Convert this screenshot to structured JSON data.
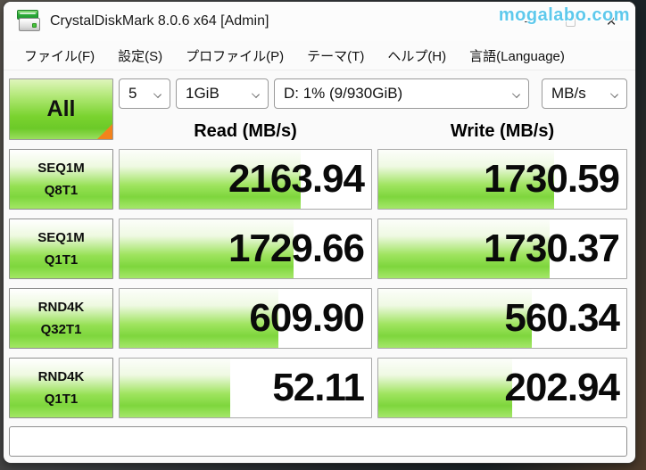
{
  "window": {
    "title": "CrystalDiskMark 8.0.6 x64 [Admin]",
    "watermark": "mogalabo.com",
    "controls": {
      "close": "×"
    }
  },
  "menu": {
    "items": [
      {
        "label": "ファイル(F)"
      },
      {
        "label": "設定(S)"
      },
      {
        "label": "プロファイル(P)"
      },
      {
        "label": "テーマ(T)"
      },
      {
        "label": "ヘルプ(H)"
      },
      {
        "label": "言語(Language)"
      }
    ]
  },
  "toolbar": {
    "all_button": "All",
    "test_count": "5",
    "test_size": "1GiB",
    "target_drive": "D: 1% (9/930GiB)",
    "unit": "MB/s"
  },
  "columns": {
    "read": "Read (MB/s)",
    "write": "Write (MB/s)"
  },
  "results": {
    "rows": [
      {
        "label_line1": "SEQ1M",
        "label_line2": "Q8T1",
        "read": "2163.94",
        "write": "1730.59",
        "read_fill": 72,
        "write_fill": 71
      },
      {
        "label_line1": "SEQ1M",
        "label_line2": "Q1T1",
        "read": "1729.66",
        "write": "1730.37",
        "read_fill": 69,
        "write_fill": 69
      },
      {
        "label_line1": "RND4K",
        "label_line2": "Q32T1",
        "read": "609.90",
        "write": "560.34",
        "read_fill": 63,
        "write_fill": 62
      },
      {
        "label_line1": "RND4K",
        "label_line2": "Q1T1",
        "read": "52.11",
        "write": "202.94",
        "read_fill": 44,
        "write_fill": 54
      }
    ]
  },
  "status_bar": {
    "text": ""
  },
  "colors": {
    "bar_green": "#7ed63d",
    "all_corner_orange": "#f2831c",
    "watermark_cyan": "#5ec9ec",
    "value_text": "#0a0a0a"
  }
}
